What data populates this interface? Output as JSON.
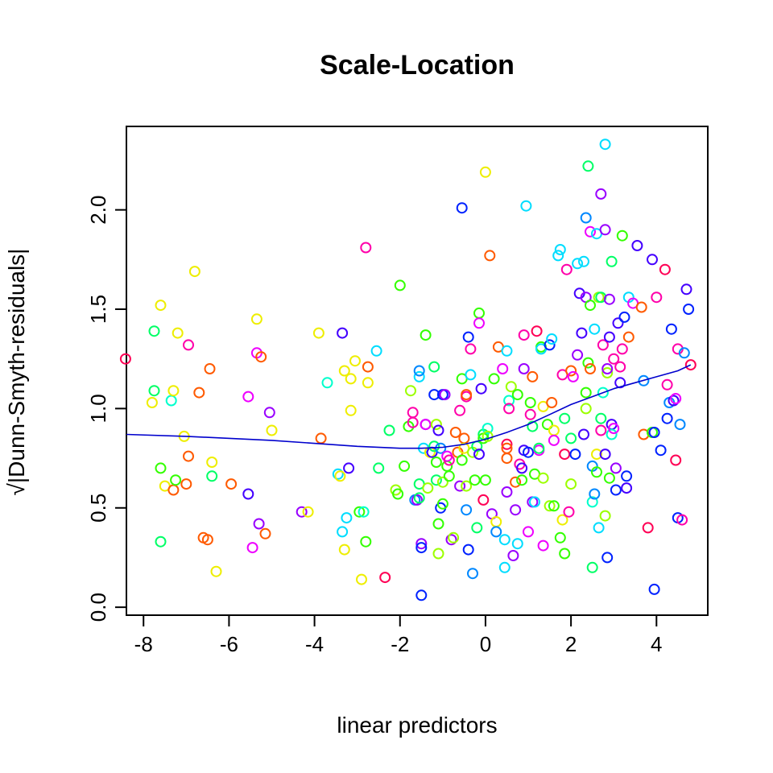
{
  "chart_data": {
    "type": "scatter",
    "title": "Scale-Location",
    "xlabel": "linear predictors",
    "ylabel": "√|Dunn-Smyth-residuals|",
    "xlim": [
      -8.4,
      5.2
    ],
    "ylim": [
      -0.04,
      2.42
    ],
    "xticks": [
      -8,
      -6,
      -4,
      -2,
      0,
      2,
      4
    ],
    "xtick_labels": [
      "-8",
      "-6",
      "-4",
      "-2",
      "0",
      "2",
      "4"
    ],
    "yticks": [
      0.0,
      0.5,
      1.0,
      1.5,
      2.0
    ],
    "ytick_labels": [
      "0.0",
      "0.5",
      "1.0",
      "1.5",
      "2.0"
    ],
    "grid": false,
    "legend": "none",
    "marker": "open-circle",
    "palette": [
      "#ff0000",
      "#ff5a00",
      "#ffb300",
      "#eeee00",
      "#9cff00",
      "#33ff00",
      "#00ff66",
      "#00ffcc",
      "#00ddff",
      "#0088ff",
      "#0022ff",
      "#4400ff",
      "#9900ff",
      "#ee00ff",
      "#ff00aa",
      "#ff0055"
    ],
    "points": [
      [
        -8.42,
        1.25,
        15
      ],
      [
        -7.8,
        1.03,
        3
      ],
      [
        -7.75,
        1.39,
        6
      ],
      [
        -7.75,
        1.09,
        6
      ],
      [
        -7.6,
        1.52,
        3
      ],
      [
        -7.6,
        0.7,
        5
      ],
      [
        -7.6,
        0.33,
        6
      ],
      [
        -7.5,
        0.61,
        3
      ],
      [
        -7.35,
        1.04,
        7
      ],
      [
        -7.3,
        1.09,
        3
      ],
      [
        -7.3,
        0.59,
        1
      ],
      [
        -7.25,
        0.64,
        5
      ],
      [
        -7.2,
        1.38,
        3
      ],
      [
        -7.05,
        0.86,
        3
      ],
      [
        -7.0,
        0.62,
        1
      ],
      [
        -6.95,
        1.32,
        14
      ],
      [
        -6.95,
        0.76,
        1
      ],
      [
        -6.8,
        1.69,
        3
      ],
      [
        -6.7,
        1.08,
        1
      ],
      [
        -6.6,
        0.35,
        1
      ],
      [
        -6.5,
        0.34,
        1
      ],
      [
        -6.45,
        1.2,
        1
      ],
      [
        -6.4,
        0.66,
        6
      ],
      [
        -6.4,
        0.73,
        3
      ],
      [
        -6.3,
        0.18,
        3
      ],
      [
        -5.95,
        0.62,
        1
      ],
      [
        -5.55,
        1.06,
        13
      ],
      [
        -5.55,
        0.57,
        11
      ],
      [
        -5.45,
        0.3,
        13
      ],
      [
        -5.35,
        1.45,
        3
      ],
      [
        -5.35,
        1.28,
        13
      ],
      [
        -5.3,
        0.42,
        12
      ],
      [
        -5.25,
        1.26,
        1
      ],
      [
        -5.15,
        0.37,
        1
      ],
      [
        -5.05,
        0.98,
        12
      ],
      [
        -5.0,
        0.89,
        3
      ],
      [
        -4.3,
        0.48,
        12
      ],
      [
        -4.15,
        0.48,
        3
      ],
      [
        -3.9,
        1.38,
        3
      ],
      [
        -3.85,
        0.85,
        1
      ],
      [
        -3.7,
        1.13,
        7
      ],
      [
        -3.45,
        0.67,
        8
      ],
      [
        -3.4,
        0.66,
        3
      ],
      [
        -3.35,
        0.38,
        8
      ],
      [
        -3.35,
        1.38,
        11
      ],
      [
        -3.3,
        1.19,
        3
      ],
      [
        -3.3,
        0.29,
        3
      ],
      [
        -3.25,
        0.45,
        8
      ],
      [
        -3.2,
        0.7,
        11
      ],
      [
        -3.15,
        1.15,
        3
      ],
      [
        -3.15,
        0.99,
        3
      ],
      [
        -3.05,
        1.24,
        3
      ],
      [
        -2.95,
        0.48,
        5
      ],
      [
        -2.9,
        0.14,
        3
      ],
      [
        -2.85,
        0.48,
        7
      ],
      [
        -2.8,
        1.81,
        14
      ],
      [
        -2.8,
        0.33,
        5
      ],
      [
        -2.75,
        1.13,
        3
      ],
      [
        -2.75,
        1.21,
        1
      ],
      [
        -2.55,
        1.29,
        8
      ],
      [
        -2.5,
        0.7,
        6
      ],
      [
        -2.35,
        0.15,
        15
      ],
      [
        -2.25,
        0.89,
        6
      ],
      [
        -2.1,
        0.59,
        4
      ],
      [
        -2.05,
        0.57,
        5
      ],
      [
        -2.0,
        1.62,
        5
      ],
      [
        -1.9,
        0.71,
        5
      ],
      [
        -1.8,
        0.91,
        5
      ],
      [
        -1.75,
        1.09,
        4
      ],
      [
        -1.7,
        0.98,
        14
      ],
      [
        -1.7,
        0.93,
        14
      ],
      [
        -1.65,
        0.54,
        9
      ],
      [
        -1.6,
        0.54,
        12
      ],
      [
        -1.55,
        1.16,
        8
      ],
      [
        -1.55,
        1.19,
        9
      ],
      [
        -1.55,
        0.62,
        6
      ],
      [
        -1.55,
        0.55,
        6
      ],
      [
        -1.5,
        0.32,
        12
      ],
      [
        -1.5,
        0.3,
        10
      ],
      [
        -1.5,
        0.06,
        10
      ],
      [
        -1.45,
        0.8,
        8
      ],
      [
        -1.4,
        0.92,
        11
      ],
      [
        -1.4,
        0.92,
        13
      ],
      [
        -1.4,
        1.37,
        5
      ],
      [
        -1.35,
        0.6,
        4
      ],
      [
        -1.3,
        0.78,
        3
      ],
      [
        -1.25,
        0.78,
        11
      ],
      [
        -1.2,
        0.81,
        6
      ],
      [
        -1.2,
        1.21,
        6
      ],
      [
        -1.2,
        1.07,
        10
      ],
      [
        -1.15,
        0.92,
        4
      ],
      [
        -1.15,
        0.73,
        5
      ],
      [
        -1.15,
        0.64,
        6
      ],
      [
        -1.1,
        0.42,
        5
      ],
      [
        -1.1,
        0.27,
        4
      ],
      [
        -1.1,
        0.89,
        11
      ],
      [
        -1.05,
        0.5,
        10
      ],
      [
        -1.05,
        0.8,
        9
      ],
      [
        -1.0,
        0.63,
        4
      ],
      [
        -1.0,
        0.52,
        5
      ],
      [
        -1.0,
        1.07,
        10
      ],
      [
        -0.95,
        1.07,
        12
      ],
      [
        -0.9,
        0.71,
        5
      ],
      [
        -0.9,
        0.76,
        13
      ],
      [
        -0.85,
        0.74,
        14
      ],
      [
        -0.85,
        0.66,
        5
      ],
      [
        -0.8,
        0.34,
        12
      ],
      [
        -0.75,
        0.35,
        4
      ],
      [
        -0.7,
        0.88,
        1
      ],
      [
        -0.65,
        0.78,
        1
      ],
      [
        -0.6,
        0.61,
        12
      ],
      [
        -0.6,
        0.99,
        14
      ],
      [
        -0.55,
        2.01,
        10
      ],
      [
        -0.55,
        1.15,
        5
      ],
      [
        -0.55,
        0.74,
        5
      ],
      [
        -0.5,
        0.85,
        1
      ],
      [
        -0.5,
        0.8,
        3
      ],
      [
        -0.45,
        1.06,
        14
      ],
      [
        -0.45,
        1.07,
        1
      ],
      [
        -0.45,
        0.61,
        4
      ],
      [
        -0.45,
        0.49,
        9
      ],
      [
        -0.4,
        1.36,
        10
      ],
      [
        -0.4,
        0.29,
        10
      ],
      [
        -0.35,
        1.17,
        8
      ],
      [
        -0.35,
        1.3,
        14
      ],
      [
        -0.3,
        0.78,
        4
      ],
      [
        -0.3,
        0.17,
        9
      ],
      [
        -0.25,
        0.64,
        5
      ],
      [
        -0.2,
        0.81,
        6
      ],
      [
        -0.2,
        0.4,
        6
      ],
      [
        -0.15,
        1.48,
        5
      ],
      [
        -0.15,
        1.43,
        13
      ],
      [
        -0.15,
        0.77,
        11
      ],
      [
        -0.1,
        1.1,
        11
      ],
      [
        -0.05,
        0.87,
        6
      ],
      [
        -0.05,
        0.85,
        5
      ],
      [
        -0.05,
        0.54,
        15
      ],
      [
        0.0,
        2.19,
        3
      ],
      [
        0.0,
        0.64,
        5
      ],
      [
        0.05,
        0.9,
        7
      ],
      [
        0.05,
        0.86,
        4
      ],
      [
        0.1,
        1.77,
        1
      ],
      [
        0.15,
        0.47,
        12
      ],
      [
        0.2,
        1.15,
        5
      ],
      [
        0.25,
        0.43,
        3
      ],
      [
        0.25,
        0.38,
        9
      ],
      [
        0.3,
        1.31,
        1
      ],
      [
        0.4,
        1.2,
        13
      ],
      [
        0.45,
        0.2,
        8
      ],
      [
        0.45,
        0.34,
        8
      ],
      [
        0.5,
        0.82,
        15
      ],
      [
        0.5,
        0.8,
        1
      ],
      [
        0.5,
        0.75,
        1
      ],
      [
        0.5,
        0.58,
        12
      ],
      [
        0.5,
        1.29,
        8
      ],
      [
        0.55,
        1.04,
        7
      ],
      [
        0.55,
        1.0,
        14
      ],
      [
        0.6,
        1.11,
        4
      ],
      [
        0.65,
        0.26,
        12
      ],
      [
        0.7,
        0.63,
        1
      ],
      [
        0.7,
        0.49,
        12
      ],
      [
        0.75,
        1.07,
        5
      ],
      [
        0.75,
        0.32,
        8
      ],
      [
        0.8,
        0.72,
        14
      ],
      [
        0.85,
        0.7,
        11
      ],
      [
        0.85,
        0.64,
        5
      ],
      [
        0.9,
        1.2,
        12
      ],
      [
        0.9,
        1.37,
        14
      ],
      [
        0.9,
        0.79,
        11
      ],
      [
        0.95,
        2.02,
        8
      ],
      [
        1.0,
        0.38,
        13
      ],
      [
        1.0,
        0.78,
        10
      ],
      [
        1.05,
        0.97,
        14
      ],
      [
        1.05,
        1.03,
        5
      ],
      [
        1.1,
        0.91,
        6
      ],
      [
        1.1,
        1.16,
        1
      ],
      [
        1.1,
        0.53,
        12
      ],
      [
        1.15,
        0.67,
        5
      ],
      [
        1.15,
        0.53,
        8
      ],
      [
        1.2,
        1.39,
        15
      ],
      [
        1.25,
        0.79,
        13
      ],
      [
        1.25,
        0.8,
        6
      ],
      [
        1.3,
        1.31,
        5
      ],
      [
        1.3,
        1.3,
        8
      ],
      [
        1.35,
        1.01,
        3
      ],
      [
        1.35,
        0.65,
        4
      ],
      [
        1.35,
        0.31,
        13
      ],
      [
        1.45,
        0.92,
        5
      ],
      [
        1.5,
        0.51,
        4
      ],
      [
        1.5,
        1.32,
        10
      ],
      [
        1.55,
        1.35,
        8
      ],
      [
        1.55,
        1.03,
        1
      ],
      [
        1.6,
        0.51,
        5
      ],
      [
        1.6,
        0.89,
        3
      ],
      [
        1.6,
        0.84,
        13
      ],
      [
        1.7,
        1.77,
        8
      ],
      [
        1.75,
        1.8,
        8
      ],
      [
        1.75,
        0.35,
        5
      ],
      [
        1.8,
        0.44,
        3
      ],
      [
        1.8,
        1.17,
        14
      ],
      [
        1.85,
        0.77,
        15
      ],
      [
        1.85,
        0.95,
        6
      ],
      [
        1.85,
        0.27,
        5
      ],
      [
        1.9,
        1.7,
        14
      ],
      [
        1.95,
        0.48,
        14
      ],
      [
        2.0,
        0.85,
        6
      ],
      [
        2.0,
        1.19,
        1
      ],
      [
        2.0,
        0.62,
        4
      ],
      [
        2.05,
        1.16,
        13
      ],
      [
        2.1,
        0.77,
        10
      ],
      [
        2.15,
        1.27,
        12
      ],
      [
        2.15,
        1.73,
        8
      ],
      [
        2.2,
        1.58,
        11
      ],
      [
        2.25,
        1.38,
        11
      ],
      [
        2.3,
        1.74,
        8
      ],
      [
        2.3,
        0.87,
        11
      ],
      [
        2.35,
        1.96,
        9
      ],
      [
        2.35,
        1.56,
        12
      ],
      [
        2.35,
        1.08,
        5
      ],
      [
        2.35,
        1.0,
        4
      ],
      [
        2.4,
        2.22,
        6
      ],
      [
        2.4,
        1.23,
        5
      ],
      [
        2.45,
        1.89,
        13
      ],
      [
        2.45,
        1.52,
        5
      ],
      [
        2.45,
        1.2,
        1
      ],
      [
        2.5,
        0.71,
        9
      ],
      [
        2.5,
        0.53,
        7
      ],
      [
        2.5,
        0.2,
        6
      ],
      [
        2.55,
        1.4,
        8
      ],
      [
        2.55,
        0.57,
        9
      ],
      [
        2.6,
        1.88,
        8
      ],
      [
        2.6,
        0.68,
        5
      ],
      [
        2.6,
        0.77,
        3
      ],
      [
        2.65,
        1.56,
        4
      ],
      [
        2.65,
        0.4,
        8
      ],
      [
        2.7,
        2.08,
        12
      ],
      [
        2.7,
        1.56,
        6
      ],
      [
        2.7,
        0.95,
        6
      ],
      [
        2.7,
        0.89,
        14
      ],
      [
        2.75,
        1.32,
        14
      ],
      [
        2.75,
        1.08,
        7
      ],
      [
        2.8,
        2.33,
        8
      ],
      [
        2.8,
        1.9,
        12
      ],
      [
        2.8,
        0.77,
        11
      ],
      [
        2.8,
        0.46,
        4
      ],
      [
        2.85,
        1.18,
        4
      ],
      [
        2.85,
        0.25,
        10
      ],
      [
        2.85,
        1.2,
        12
      ],
      [
        2.9,
        1.55,
        12
      ],
      [
        2.9,
        1.36,
        11
      ],
      [
        2.9,
        0.65,
        5
      ],
      [
        2.95,
        1.74,
        6
      ],
      [
        2.95,
        0.92,
        11
      ],
      [
        2.95,
        0.87,
        7
      ],
      [
        3.0,
        1.25,
        14
      ],
      [
        3.0,
        0.9,
        13
      ],
      [
        3.05,
        0.7,
        12
      ],
      [
        3.05,
        0.59,
        10
      ],
      [
        3.1,
        1.43,
        11
      ],
      [
        3.15,
        1.13,
        11
      ],
      [
        3.15,
        1.21,
        14
      ],
      [
        3.2,
        1.87,
        5
      ],
      [
        3.2,
        1.3,
        14
      ],
      [
        3.25,
        1.46,
        10
      ],
      [
        3.3,
        0.66,
        10
      ],
      [
        3.3,
        0.6,
        11
      ],
      [
        3.35,
        1.56,
        8
      ],
      [
        3.35,
        1.36,
        1
      ],
      [
        3.45,
        1.53,
        13
      ],
      [
        3.55,
        1.82,
        11
      ],
      [
        3.65,
        1.51,
        1
      ],
      [
        3.7,
        1.14,
        9
      ],
      [
        3.7,
        0.87,
        1
      ],
      [
        3.8,
        0.4,
        15
      ],
      [
        3.9,
        1.75,
        11
      ],
      [
        3.9,
        0.88,
        5
      ],
      [
        3.95,
        0.88,
        10
      ],
      [
        3.95,
        0.09,
        10
      ],
      [
        4.0,
        1.56,
        14
      ],
      [
        4.1,
        0.79,
        10
      ],
      [
        4.2,
        1.7,
        15
      ],
      [
        4.25,
        1.12,
        14
      ],
      [
        4.25,
        0.95,
        10
      ],
      [
        4.3,
        1.03,
        9
      ],
      [
        4.35,
        1.4,
        10
      ],
      [
        4.4,
        1.04,
        11
      ],
      [
        4.45,
        1.05,
        13
      ],
      [
        4.45,
        0.74,
        15
      ],
      [
        4.5,
        0.45,
        10
      ],
      [
        4.5,
        1.3,
        14
      ],
      [
        4.55,
        0.92,
        9
      ],
      [
        4.6,
        0.44,
        14
      ],
      [
        4.65,
        1.28,
        9
      ],
      [
        4.7,
        1.6,
        11
      ],
      [
        4.75,
        1.5,
        10
      ],
      [
        4.8,
        1.22,
        15
      ]
    ],
    "smooth_line": {
      "color": "#0000cd",
      "x": [
        -8.4,
        -7.0,
        -5.0,
        -3.0,
        -2.0,
        -1.5,
        -1.0,
        -0.5,
        0.0,
        0.5,
        1.0,
        1.5,
        2.0,
        2.5,
        3.0,
        3.5,
        4.0,
        4.5,
        4.8
      ],
      "y": [
        0.87,
        0.86,
        0.84,
        0.81,
        0.8,
        0.8,
        0.805,
        0.82,
        0.845,
        0.88,
        0.92,
        0.97,
        1.02,
        1.06,
        1.1,
        1.13,
        1.16,
        1.19,
        1.22
      ]
    }
  }
}
